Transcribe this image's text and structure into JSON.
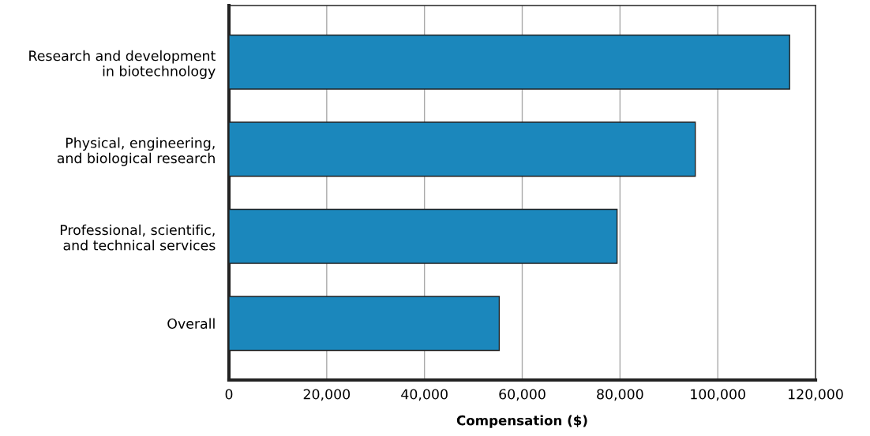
{
  "chart_data": {
    "type": "bar",
    "orientation": "horizontal",
    "xlabel": "Compensation ($)",
    "categories": [
      "Research and development\nin biotechnology",
      "Physical, engineering,\nand biological research",
      "Professional, scientific,\nand technical services",
      "Overall"
    ],
    "values": [
      114700,
      95400,
      79400,
      55300
    ],
    "color": "#1b87bc",
    "xlim": [
      0,
      120000
    ],
    "xticks": [
      {
        "value": 0,
        "label": "0"
      },
      {
        "value": 20000,
        "label": "20,000"
      },
      {
        "value": 40000,
        "label": "40,000"
      },
      {
        "value": 60000,
        "label": "60,000"
      },
      {
        "value": 80000,
        "label": "80,000"
      },
      {
        "value": 100000,
        "label": "100,000"
      },
      {
        "value": 120000,
        "label": "120,000"
      }
    ],
    "grid": "x",
    "legend": false
  }
}
